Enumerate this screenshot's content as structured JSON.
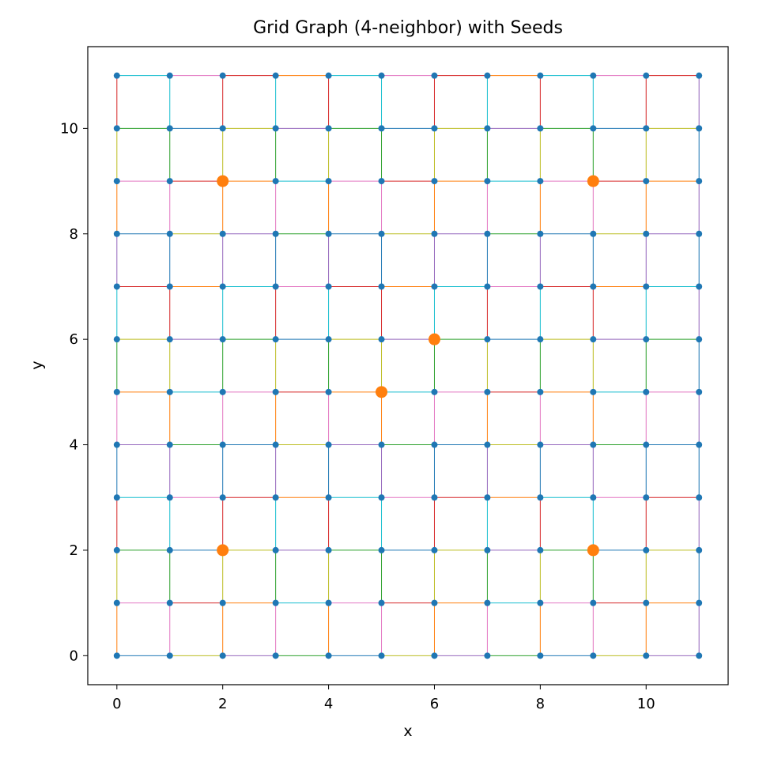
{
  "chart_data": {
    "type": "scatter",
    "title": "Grid Graph (4-neighbor) with Seeds",
    "xlabel": "x",
    "ylabel": "y",
    "xlim": [
      -0.55,
      11.55
    ],
    "ylim": [
      -0.55,
      11.55
    ],
    "xticks": [
      0,
      2,
      4,
      6,
      8,
      10
    ],
    "yticks": [
      0,
      2,
      4,
      6,
      8,
      10
    ],
    "grid": false,
    "nodes": {
      "x_min": 0,
      "x_max": 11,
      "y_min": 0,
      "y_max": 11,
      "color": "#1f77b4"
    },
    "edges": {
      "connectivity": "4-neighbor",
      "colors": [
        "#1f77b4",
        "#ff7f0e",
        "#2ca02c",
        "#d62728",
        "#9467bd",
        "#e377c2",
        "#bcbd22",
        "#17becf"
      ]
    },
    "seeds": {
      "color": "#ff7f0e",
      "points": [
        [
          2,
          9
        ],
        [
          9,
          9
        ],
        [
          6,
          6
        ],
        [
          5,
          5
        ],
        [
          2,
          2
        ],
        [
          9,
          2
        ]
      ]
    }
  }
}
